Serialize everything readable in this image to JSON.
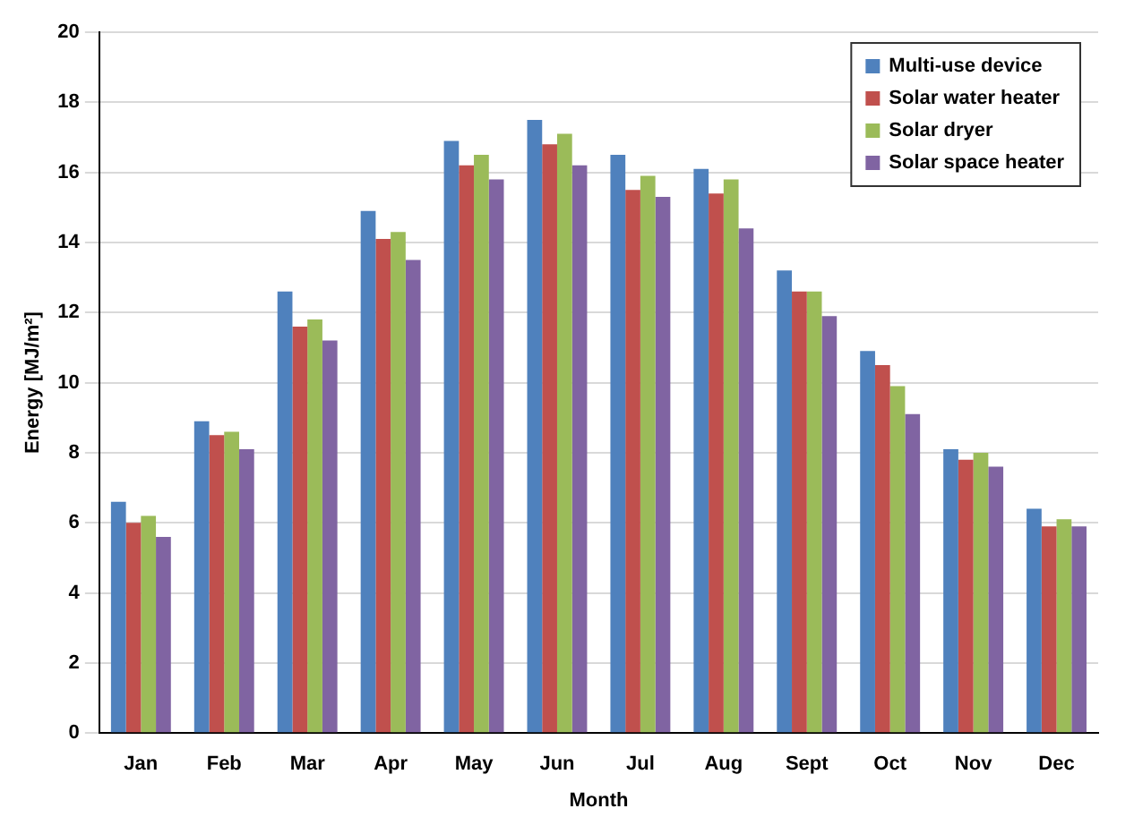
{
  "chart_data": {
    "type": "bar",
    "xlabel": "Month",
    "ylabel": "Energy [MJ/m²]",
    "categories": [
      "Jan",
      "Feb",
      "Mar",
      "Apr",
      "May",
      "Jun",
      "Jul",
      "Aug",
      "Sept",
      "Oct",
      "Nov",
      "Dec"
    ],
    "series": [
      {
        "name": "Multi-use device",
        "color": "#4f81bd",
        "values": [
          6.6,
          8.9,
          12.6,
          14.9,
          16.9,
          17.5,
          16.5,
          16.1,
          13.2,
          10.9,
          8.1,
          6.4
        ]
      },
      {
        "name": "Solar water heater",
        "color": "#c0504d",
        "values": [
          6.0,
          8.5,
          11.6,
          14.1,
          16.2,
          16.8,
          15.5,
          15.4,
          12.6,
          10.5,
          7.8,
          5.9
        ]
      },
      {
        "name": "Solar dryer",
        "color": "#9bbb59",
        "values": [
          6.2,
          8.6,
          11.8,
          14.3,
          16.5,
          17.1,
          15.9,
          15.8,
          12.6,
          9.9,
          8.0,
          6.1
        ]
      },
      {
        "name": "Solar space heater",
        "color": "#8064a2",
        "values": [
          5.6,
          8.1,
          11.2,
          13.5,
          15.8,
          16.2,
          15.3,
          14.4,
          11.9,
          9.1,
          7.6,
          5.9
        ]
      }
    ],
    "ylim": [
      0,
      20
    ],
    "yticks": [
      0,
      2,
      4,
      6,
      8,
      10,
      12,
      14,
      16,
      18,
      20
    ],
    "grid": "y",
    "legend": "top right"
  }
}
